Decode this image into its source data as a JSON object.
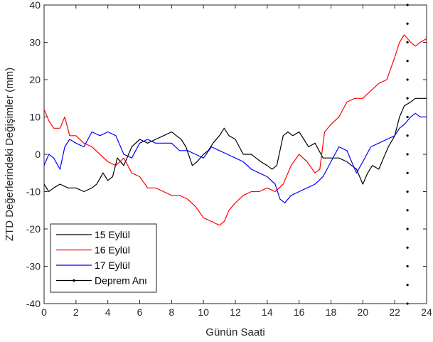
{
  "chart_data": {
    "type": "line",
    "title": "",
    "xlabel": "Günün Saati",
    "ylabel": "ZTD Değerlerindeki Değişimler (mm)",
    "xlim": [
      0,
      24
    ],
    "ylim": [
      -40,
      40
    ],
    "xticks": [
      "0",
      "2",
      "4",
      "6",
      "8",
      "10",
      "12",
      "14",
      "16",
      "18",
      "20",
      "22",
      "24"
    ],
    "yticks": [
      "40",
      "30",
      "20",
      "10",
      "0",
      "-10",
      "-20",
      "-30",
      "-40"
    ],
    "grid": false,
    "legend_position": "bottom-left",
    "series": [
      {
        "name": "15 Eylül",
        "color": "#000000",
        "x": [
          0,
          0.3,
          0.6,
          1,
          1.5,
          2,
          2.5,
          3,
          3.3,
          3.7,
          4,
          4.3,
          4.6,
          5,
          5.5,
          6,
          6.5,
          7,
          7.5,
          8,
          8.3,
          8.6,
          8.9,
          9.3,
          9.6,
          10,
          10.3,
          10.6,
          11,
          11.3,
          11.6,
          12,
          12.5,
          13,
          13.3,
          13.6,
          14,
          14.3,
          14.6,
          15,
          15.3,
          15.6,
          16,
          16.3,
          16.6,
          17,
          17.5,
          18,
          18.5,
          19,
          19.3,
          19.6,
          20,
          20.3,
          20.6,
          21,
          21.3,
          21.6,
          22,
          22.3,
          22.6,
          23,
          23.3,
          23.6,
          24
        ],
        "values": [
          -8,
          -10,
          -9,
          -8,
          -9,
          -9,
          -10,
          -9,
          -8,
          -5,
          -7,
          -6,
          -1,
          -3,
          2,
          4,
          3,
          4,
          5,
          6,
          5,
          4,
          2,
          -3,
          -2,
          0,
          1,
          3,
          5,
          7,
          5,
          4,
          0,
          0,
          -1,
          -2,
          -3,
          -4,
          -3,
          5,
          6,
          5,
          6,
          4,
          2,
          3,
          -1,
          -1,
          -1,
          -2,
          -3,
          -4,
          -8,
          -5,
          -3,
          -4,
          -1,
          2,
          5,
          10,
          13,
          14,
          15,
          15,
          15
        ]
      },
      {
        "name": "16 Eylül",
        "color": "#ff0000",
        "x": [
          0,
          0.3,
          0.6,
          1,
          1.3,
          1.6,
          2,
          2.5,
          3,
          3.5,
          4,
          4.5,
          5,
          5.5,
          6,
          6.5,
          7,
          7.5,
          8,
          8.5,
          9,
          9.5,
          10,
          10.5,
          11,
          11.3,
          11.6,
          12,
          12.5,
          13,
          13.5,
          14,
          14.5,
          15,
          15.5,
          16,
          16.5,
          17,
          17.3,
          17.6,
          18,
          18.5,
          19,
          19.5,
          20,
          20.5,
          21,
          21.5,
          22,
          22.3,
          22.6,
          23,
          23.3,
          23.6,
          24
        ],
        "values": [
          12,
          9,
          7,
          7,
          10,
          5,
          5,
          3,
          2,
          0,
          -2,
          -3,
          -1,
          -5,
          -6,
          -9,
          -9,
          -10,
          -11,
          -11,
          -12,
          -14,
          -17,
          -18,
          -19,
          -18,
          -15,
          -13,
          -11,
          -10,
          -10,
          -9,
          -10,
          -8,
          -3,
          0,
          -2,
          -5,
          -4,
          6,
          8,
          10,
          14,
          15,
          15,
          17,
          19,
          20,
          26,
          30,
          32,
          30,
          29,
          30,
          31
        ]
      },
      {
        "name": "17 Eylül",
        "color": "#0000ff",
        "x": [
          0,
          0.3,
          0.6,
          1,
          1.3,
          1.6,
          2,
          2.5,
          3,
          3.5,
          4,
          4.5,
          5,
          5.5,
          6,
          6.5,
          7,
          7.5,
          8,
          8.5,
          9,
          9.5,
          10,
          10.5,
          11,
          11.5,
          12,
          12.5,
          13,
          13.5,
          14,
          14.5,
          14.8,
          15.1,
          15.5,
          16,
          16.5,
          17,
          17.5,
          18,
          18.5,
          19,
          19.3,
          19.6,
          20,
          20.5,
          21,
          21.5,
          22,
          22.3,
          22.6,
          23,
          23.3,
          23.6,
          24
        ],
        "values": [
          -3,
          0,
          -1,
          -4,
          2,
          4,
          3,
          2,
          6,
          5,
          6,
          5,
          0,
          -1,
          3,
          4,
          3,
          3,
          3,
          1,
          1,
          0,
          -1,
          2,
          1,
          0,
          -1,
          -2,
          -4,
          -5,
          -6,
          -8,
          -12,
          -13,
          -11,
          -10,
          -9,
          -8,
          -6,
          -2,
          2,
          1,
          -2,
          -5,
          -2,
          2,
          3,
          4,
          5,
          7,
          8,
          10,
          11,
          10,
          10
        ]
      },
      {
        "name": "Deprem Anı",
        "color": "#000000",
        "vertical_x": 22.8
      }
    ]
  }
}
